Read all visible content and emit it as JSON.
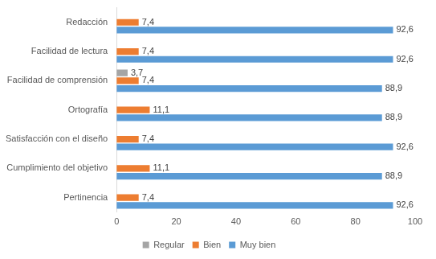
{
  "chart_data": {
    "type": "bar",
    "orientation": "horizontal",
    "categories": [
      "Redacción",
      "Facilidad de lectura",
      "Facilidad de comprensión",
      "Ortografía",
      "Satisfacción con el diseño",
      "Cumplimiento del objetivo",
      "Pertinencia"
    ],
    "series": [
      {
        "name": "Regular",
        "color": "#a5a5a5",
        "values": [
          null,
          null,
          3.7,
          null,
          null,
          null,
          null
        ],
        "value_labels": [
          null,
          null,
          "3,7",
          null,
          null,
          null,
          null
        ]
      },
      {
        "name": "Bien",
        "color": "#ed7d31",
        "values": [
          7.4,
          7.4,
          7.4,
          11.1,
          7.4,
          11.1,
          7.4
        ],
        "value_labels": [
          "7,4",
          "7,4",
          "7,4",
          "11,1",
          "7,4",
          "11,1",
          "7,4"
        ]
      },
      {
        "name": "Muy bien",
        "color": "#5b9bd5",
        "values": [
          92.6,
          92.6,
          88.9,
          88.9,
          92.6,
          88.9,
          92.6
        ],
        "value_labels": [
          "92,6",
          "92,6",
          "88,9",
          "88,9",
          "92,6",
          "88,9",
          "92,6"
        ]
      }
    ],
    "xlim": [
      0,
      100
    ],
    "xticks": [
      0,
      20,
      40,
      60,
      80,
      100
    ],
    "grid": false,
    "legend": "bottom",
    "data_labels": true
  }
}
